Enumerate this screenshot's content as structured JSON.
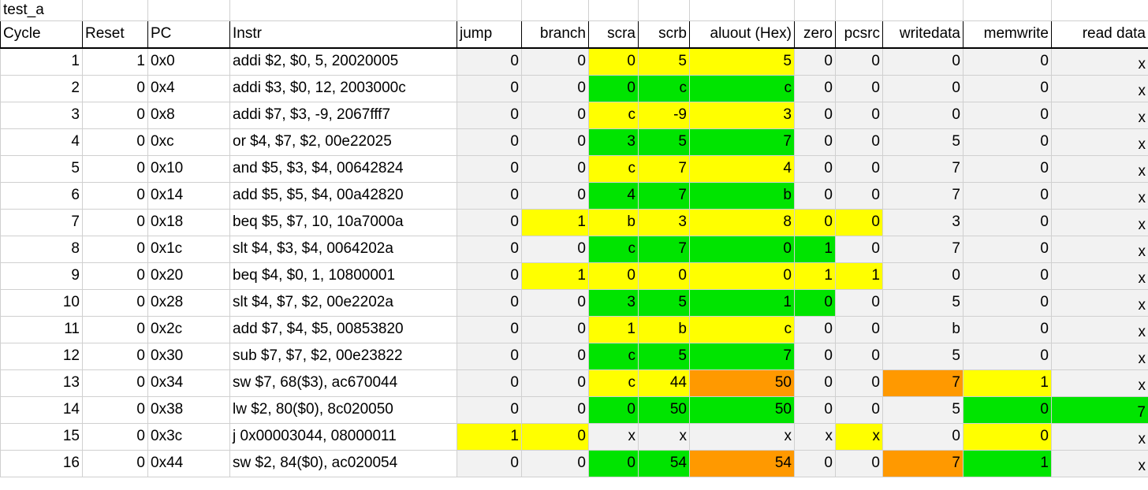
{
  "sheet": {
    "title": "test_a"
  },
  "headers": [
    "Cycle",
    "Reset",
    "PC",
    "Instr",
    "jump",
    "branch",
    "scra",
    "scrb",
    "aluout (Hex)",
    "zero",
    "pcsrc",
    "writedata",
    "memwrite",
    "read data"
  ],
  "colors": {
    "grey": "#f2f2f2",
    "yellow": "#ffff00",
    "green": "#00e400",
    "orange": "#ff9900",
    "white": "#ffffff"
  },
  "rows": [
    {
      "cells": [
        "1",
        "1",
        "0x0",
        "addi $2, $0, 5, 20020005",
        "0",
        "0",
        "0",
        "5",
        "5",
        "0",
        "0",
        "0",
        "0",
        "x"
      ],
      "fill": [
        "w",
        "w",
        "w",
        "w",
        "g",
        "g",
        "y",
        "y",
        "y",
        "g",
        "g",
        "g",
        "g",
        "g"
      ]
    },
    {
      "cells": [
        "2",
        "0",
        "0x4",
        "addi $3, $0, 12, 2003000c",
        "0",
        "0",
        "0",
        "c",
        "c",
        "0",
        "0",
        "0",
        "0",
        "x"
      ],
      "fill": [
        "w",
        "w",
        "w",
        "w",
        "g",
        "g",
        "gr",
        "gr",
        "gr",
        "g",
        "g",
        "g",
        "g",
        "g"
      ]
    },
    {
      "cells": [
        "3",
        "0",
        "0x8",
        "addi $7, $3, -9, 2067fff7",
        "0",
        "0",
        "c",
        "-9",
        "3",
        "0",
        "0",
        "0",
        "0",
        "x"
      ],
      "fill": [
        "w",
        "w",
        "w",
        "w",
        "g",
        "g",
        "y",
        "y",
        "y",
        "g",
        "g",
        "g",
        "g",
        "g"
      ]
    },
    {
      "cells": [
        "4",
        "0",
        "0xc",
        "or $4, $7, $2, 00e22025",
        "0",
        "0",
        "3",
        "5",
        "7",
        "0",
        "0",
        "5",
        "0",
        "x"
      ],
      "fill": [
        "w",
        "w",
        "w",
        "w",
        "g",
        "g",
        "gr",
        "gr",
        "gr",
        "g",
        "g",
        "g",
        "g",
        "g"
      ]
    },
    {
      "cells": [
        "5",
        "0",
        "0x10",
        "and $5, $3, $4, 00642824",
        "0",
        "0",
        "c",
        "7",
        "4",
        "0",
        "0",
        "7",
        "0",
        "x"
      ],
      "fill": [
        "w",
        "w",
        "w",
        "w",
        "g",
        "g",
        "y",
        "y",
        "y",
        "g",
        "g",
        "g",
        "g",
        "g"
      ]
    },
    {
      "cells": [
        "6",
        "0",
        "0x14",
        "add $5, $5, $4, 00a42820",
        "0",
        "0",
        "4",
        "7",
        "b",
        "0",
        "0",
        "7",
        "0",
        "x"
      ],
      "fill": [
        "w",
        "w",
        "w",
        "w",
        "g",
        "g",
        "gr",
        "gr",
        "gr",
        "g",
        "g",
        "g",
        "g",
        "g"
      ]
    },
    {
      "cells": [
        "7",
        "0",
        "0x18",
        "beq $5, $7, 10, 10a7000a",
        "0",
        "1",
        "b",
        "3",
        "8",
        "0",
        "0",
        "3",
        "0",
        "x"
      ],
      "fill": [
        "w",
        "w",
        "w",
        "w",
        "g",
        "y",
        "y",
        "y",
        "y",
        "y",
        "y",
        "g",
        "g",
        "g"
      ]
    },
    {
      "cells": [
        "8",
        "0",
        "0x1c",
        "slt $4, $3, $4, 0064202a",
        "0",
        "0",
        "c",
        "7",
        "0",
        "1",
        "0",
        "7",
        "0",
        "x"
      ],
      "fill": [
        "w",
        "w",
        "w",
        "w",
        "g",
        "g",
        "gr",
        "gr",
        "gr",
        "gr",
        "g",
        "g",
        "g",
        "g"
      ]
    },
    {
      "cells": [
        "9",
        "0",
        "0x20",
        "beq $4, $0, 1, 10800001",
        "0",
        "1",
        "0",
        "0",
        "0",
        "1",
        "1",
        "0",
        "0",
        "x"
      ],
      "fill": [
        "w",
        "w",
        "w",
        "w",
        "g",
        "y",
        "y",
        "y",
        "y",
        "y",
        "y",
        "g",
        "g",
        "g"
      ]
    },
    {
      "cells": [
        "10",
        "0",
        "0x28",
        "slt $4, $7, $2, 00e2202a",
        "0",
        "0",
        "3",
        "5",
        "1",
        "0",
        "0",
        "5",
        "0",
        "x"
      ],
      "fill": [
        "w",
        "w",
        "w",
        "w",
        "g",
        "g",
        "gr",
        "gr",
        "gr",
        "gr",
        "g",
        "g",
        "g",
        "g"
      ]
    },
    {
      "cells": [
        "11",
        "0",
        "0x2c",
        "add $7, $4, $5, 00853820",
        "0",
        "0",
        "1",
        "b",
        "c",
        "0",
        "0",
        "b",
        "0",
        "x"
      ],
      "fill": [
        "w",
        "w",
        "w",
        "w",
        "g",
        "g",
        "y",
        "y",
        "y",
        "g",
        "g",
        "g",
        "g",
        "g"
      ]
    },
    {
      "cells": [
        "12",
        "0",
        "0x30",
        "sub $7, $7, $2, 00e23822",
        "0",
        "0",
        "c",
        "5",
        "7",
        "0",
        "0",
        "5",
        "0",
        "x"
      ],
      "fill": [
        "w",
        "w",
        "w",
        "w",
        "g",
        "g",
        "gr",
        "gr",
        "gr",
        "g",
        "g",
        "g",
        "g",
        "g"
      ]
    },
    {
      "cells": [
        "13",
        "0",
        "0x34",
        "sw $7, 68($3), ac670044",
        "0",
        "0",
        "c",
        "44",
        "50",
        "0",
        "0",
        "7",
        "1",
        "x"
      ],
      "fill": [
        "w",
        "w",
        "w",
        "w",
        "g",
        "g",
        "y",
        "y",
        "o",
        "g",
        "g",
        "o",
        "y",
        "g"
      ]
    },
    {
      "cells": [
        "14",
        "0",
        "0x38",
        "lw $2, 80($0), 8c020050",
        "0",
        "0",
        "0",
        "50",
        "50",
        "0",
        "0",
        "5",
        "0",
        "7"
      ],
      "fill": [
        "w",
        "w",
        "w",
        "w",
        "g",
        "g",
        "gr",
        "gr",
        "gr",
        "g",
        "g",
        "g",
        "gr",
        "gr"
      ]
    },
    {
      "cells": [
        "15",
        "0",
        "0x3c",
        "j 0x00003044, 08000011",
        "1",
        "0",
        "x",
        "x",
        "x",
        "x",
        "x",
        "0",
        "0",
        "x"
      ],
      "fill": [
        "w",
        "w",
        "w",
        "w",
        "y",
        "y",
        "g",
        "g",
        "g",
        "g",
        "y",
        "g",
        "y",
        "g"
      ]
    },
    {
      "cells": [
        "16",
        "0",
        "0x44",
        "sw $2, 84($0), ac020054",
        "0",
        "0",
        "0",
        "54",
        "54",
        "0",
        "0",
        "7",
        "1",
        "x"
      ],
      "fill": [
        "w",
        "w",
        "w",
        "w",
        "g",
        "g",
        "gr",
        "gr",
        "o",
        "g",
        "g",
        "o",
        "gr",
        "g"
      ]
    }
  ]
}
